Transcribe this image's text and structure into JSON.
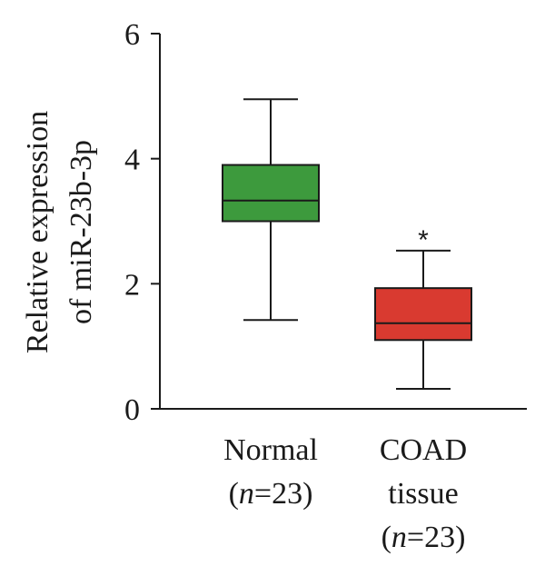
{
  "chart_data": {
    "type": "box",
    "ylabel_lines": [
      "Relative expression",
      "of miR-23b-3p"
    ],
    "ylim": [
      0,
      6
    ],
    "yticks": [
      0,
      2,
      4,
      6
    ],
    "groups": [
      {
        "label_lines": [
          "Normal",
          "(n=23)"
        ],
        "min": 1.42,
        "q1": 3.0,
        "median": 3.33,
        "q3": 3.9,
        "max": 4.95,
        "color": "#3d9a3d"
      },
      {
        "label_lines": [
          "COAD",
          "tissue",
          "(n=23)"
        ],
        "min": 0.32,
        "q1": 1.1,
        "median": 1.37,
        "q3": 1.93,
        "max": 2.53,
        "color": "#d93a30",
        "annotation": "*"
      }
    ]
  }
}
